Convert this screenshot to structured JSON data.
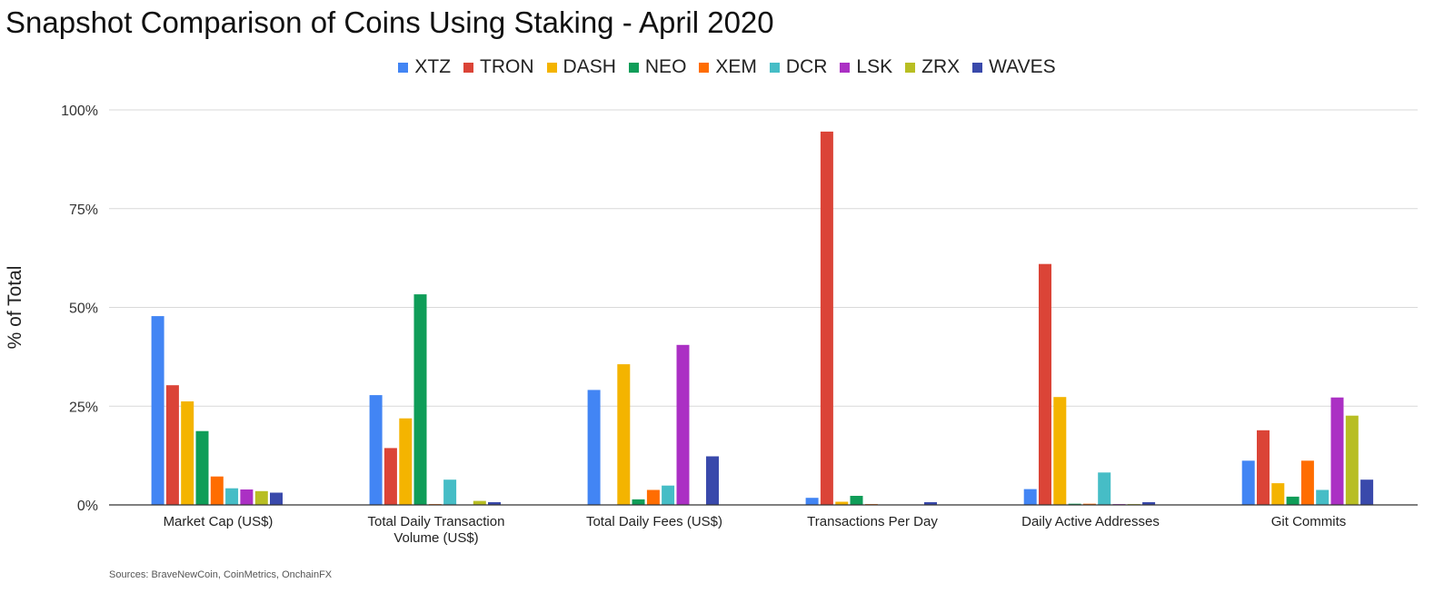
{
  "title": "Snapshot Comparison of Coins Using Staking - April 2020",
  "source_note": "Sources: BraveNewCoin, CoinMetrics, OnchainFX",
  "chart_data": {
    "type": "bar",
    "ylabel": "% of Total",
    "ylim": [
      0,
      100
    ],
    "yticks": [
      "0%",
      "25%",
      "50%",
      "75%",
      "100%"
    ],
    "grid": true,
    "legend_position": "top",
    "categories": [
      [
        "Market Cap (US$)"
      ],
      [
        "Total Daily Transaction",
        "Volume (US$)"
      ],
      [
        "Total Daily Fees (US$)"
      ],
      [
        "Transactions Per Day"
      ],
      [
        "Daily Active Addresses"
      ],
      [
        "Git Commits"
      ]
    ],
    "series": [
      {
        "name": "XTZ",
        "color": "#4285F4",
        "values": [
          47.8,
          27.8,
          29.1,
          1.8,
          4.0,
          11.2
        ]
      },
      {
        "name": "TRON",
        "color": "#DB4437",
        "values": [
          30.3,
          14.4,
          0,
          94.5,
          61.0,
          18.9
        ]
      },
      {
        "name": "DASH",
        "color": "#F4B400",
        "values": [
          26.2,
          21.9,
          35.6,
          0.8,
          27.3,
          5.5
        ]
      },
      {
        "name": "NEO",
        "color": "#0F9D58",
        "values": [
          18.7,
          53.3,
          1.4,
          2.3,
          0.3,
          2.1
        ]
      },
      {
        "name": "XEM",
        "color": "#FF6D01",
        "values": [
          7.2,
          0.2,
          3.8,
          0.2,
          0.3,
          11.2
        ]
      },
      {
        "name": "DCR",
        "color": "#46BDC6",
        "values": [
          4.2,
          6.4,
          4.9,
          0.1,
          8.2,
          3.8
        ]
      },
      {
        "name": "LSK",
        "color": "#AB30C4",
        "values": [
          3.9,
          0.1,
          40.5,
          0.1,
          0.2,
          27.2
        ]
      },
      {
        "name": "ZRX",
        "color": "#B8BE23",
        "values": [
          3.5,
          1.0,
          0,
          0.1,
          0.2,
          22.6
        ]
      },
      {
        "name": "WAVES",
        "color": "#3949AB",
        "values": [
          3.1,
          0.7,
          12.3,
          0.7,
          0.7,
          6.4
        ]
      }
    ]
  }
}
